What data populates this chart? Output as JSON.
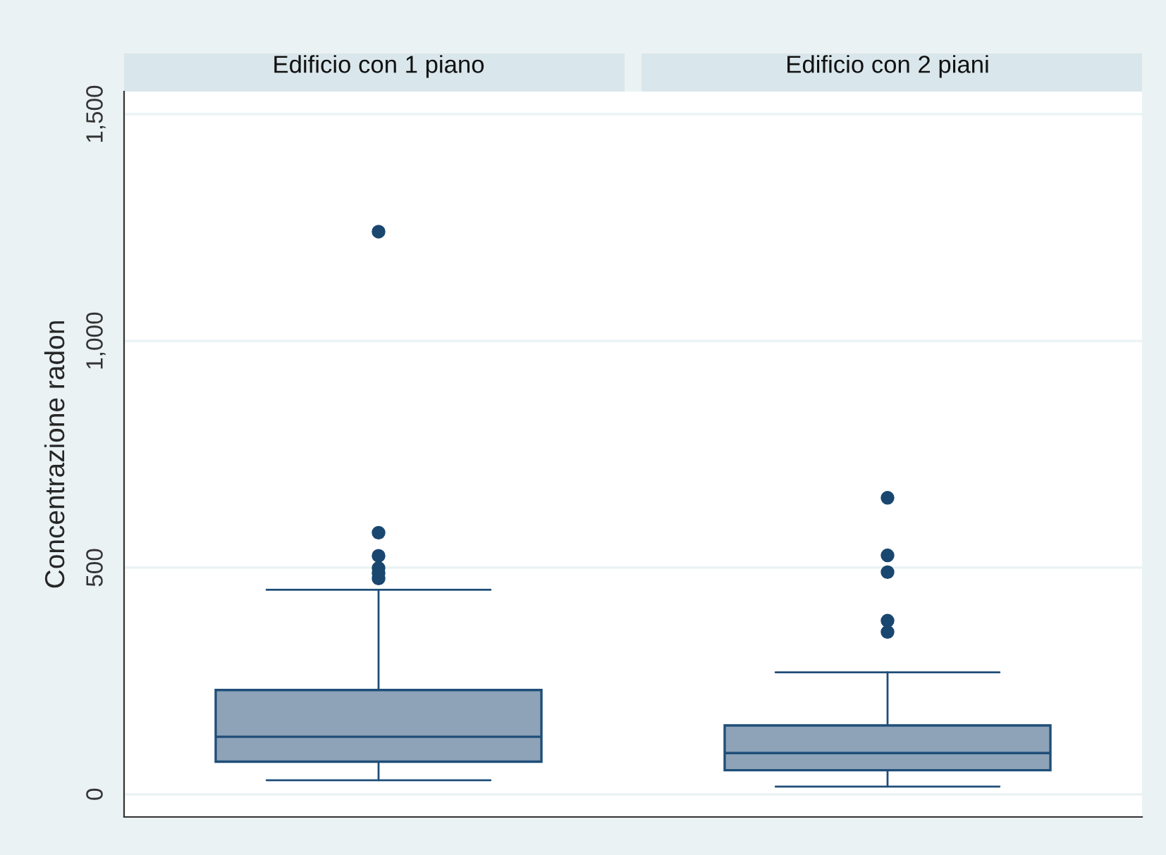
{
  "chart_data": {
    "type": "box",
    "ylabel": "Concentrazione radon",
    "categories": [
      "Edificio con 1 piano",
      "Edificio con 2 piani"
    ],
    "ylim": [
      -50,
      1550
    ],
    "yticks": [
      0,
      {
        "value": 500,
        "label": "500"
      },
      {
        "value": 1000,
        "label": "1,000"
      },
      {
        "value": 1500,
        "label": "1,500"
      }
    ],
    "grid": "y",
    "series": [
      {
        "color": "#8ea3b8",
        "boxes": [
          {
            "low": 31,
            "q1": 72,
            "median": 127,
            "q3": 230,
            "high": 451,
            "outliers": [
              476,
              488,
              499,
              526,
              577,
              1241
            ]
          },
          {
            "low": 17,
            "q1": 53,
            "median": 91,
            "q3": 152,
            "high": 269,
            "outliers": [
              358,
              383,
              490,
              527,
              654
            ]
          }
        ]
      }
    ]
  }
}
